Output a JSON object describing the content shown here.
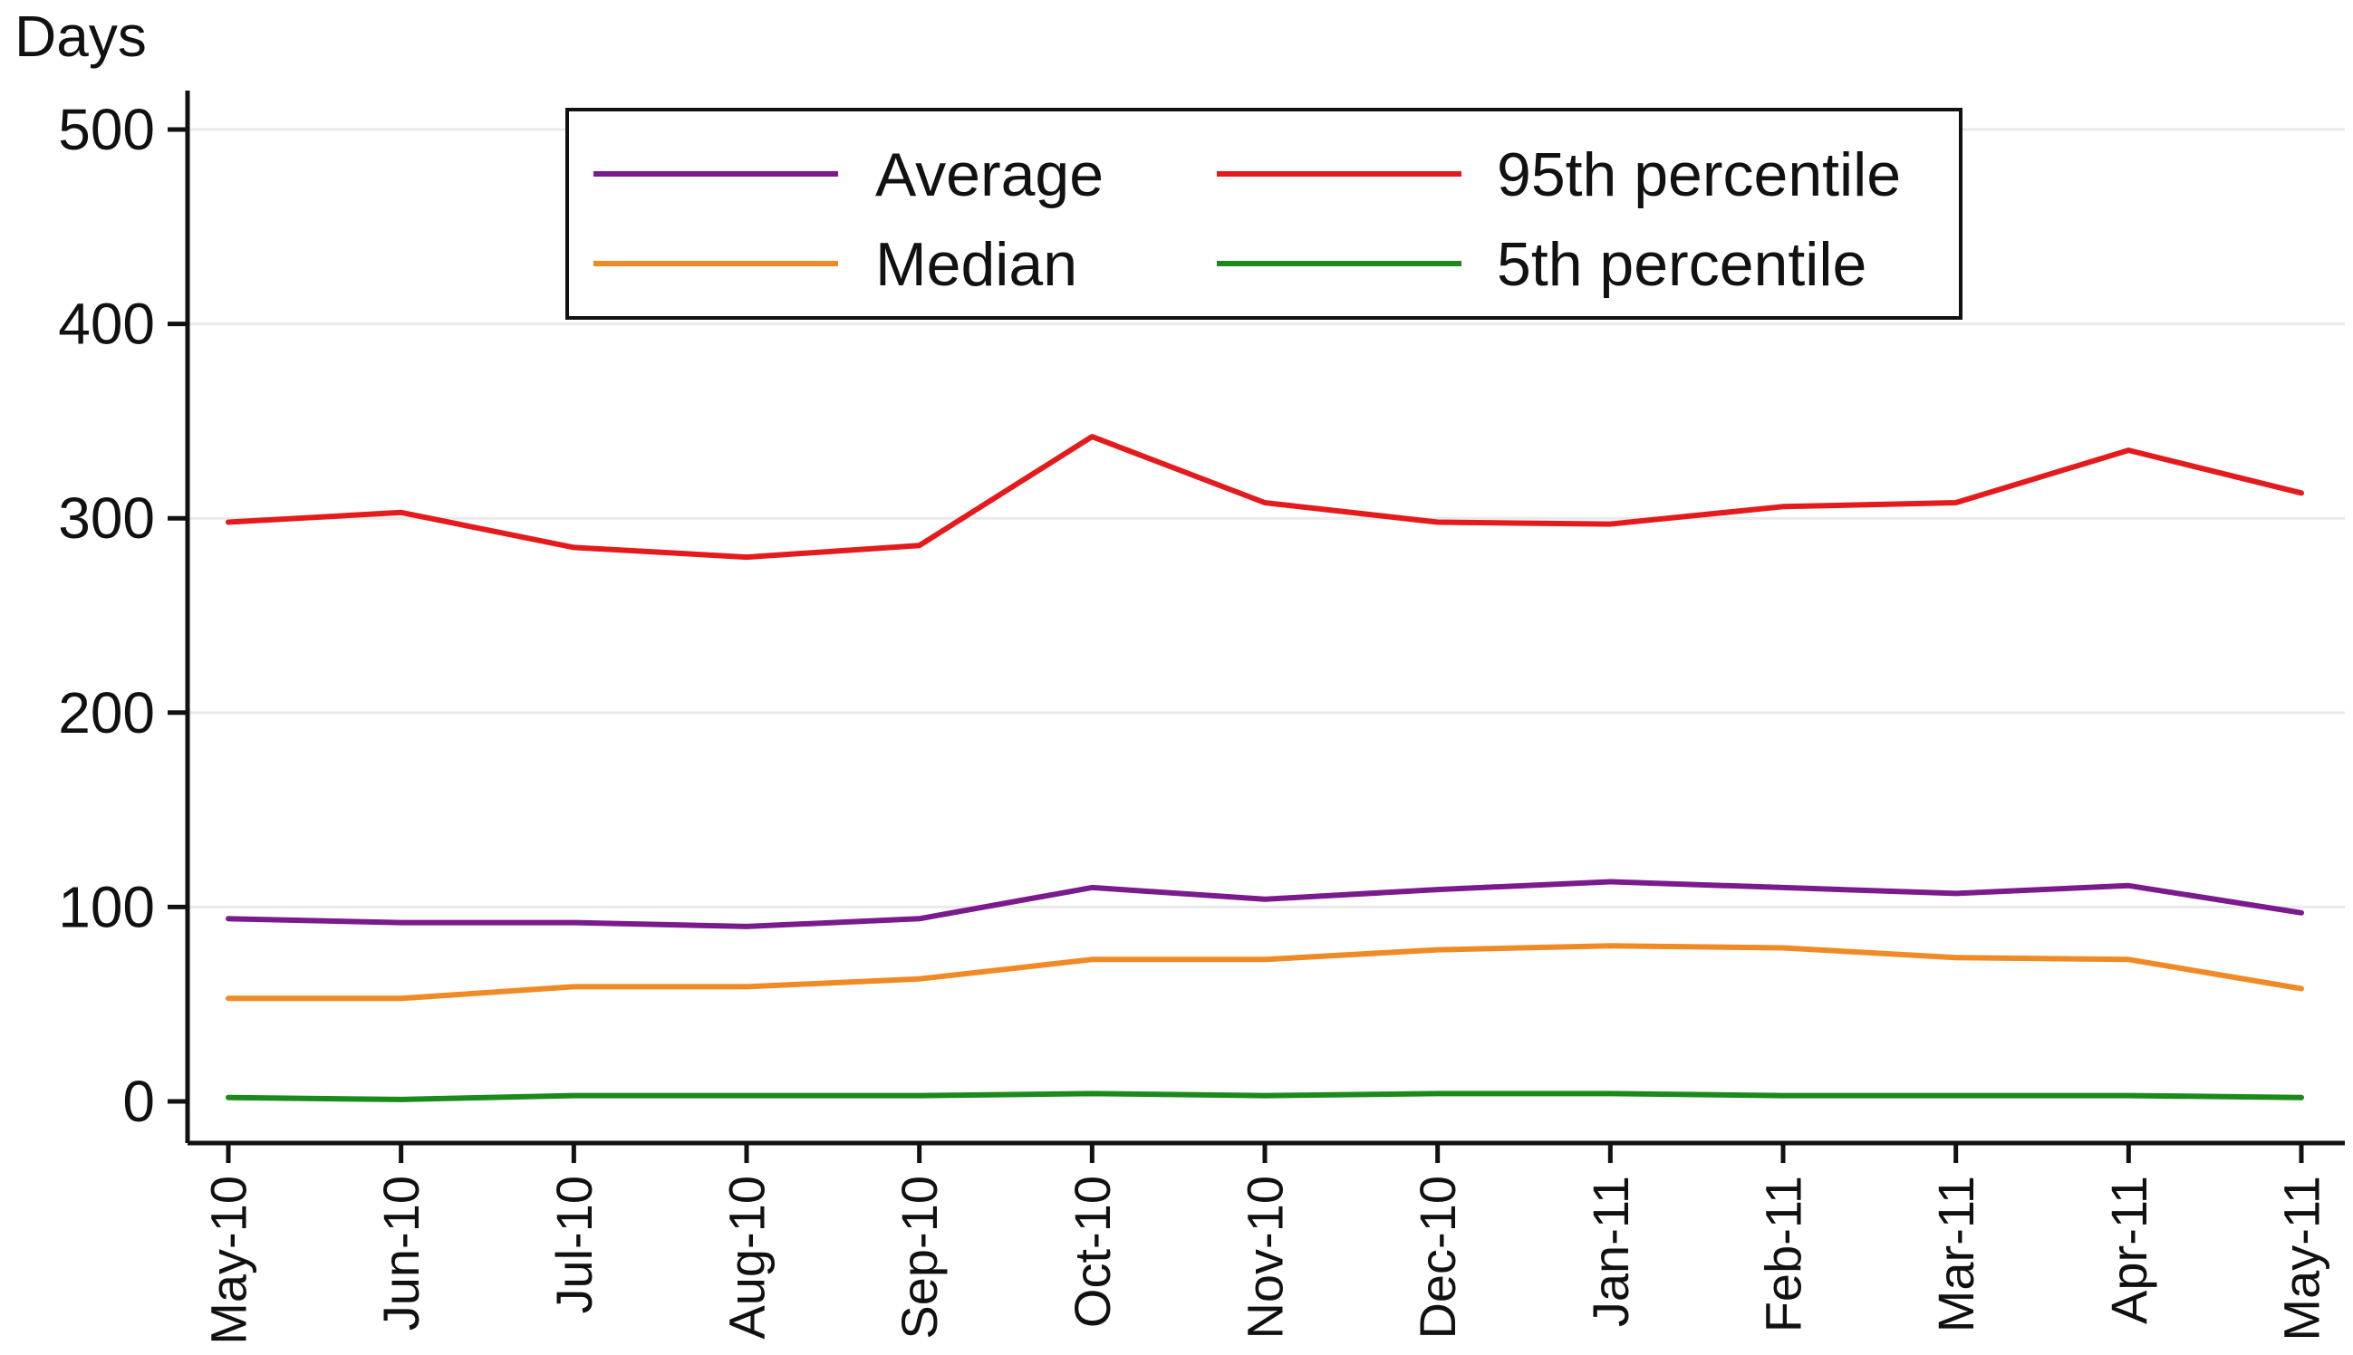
{
  "chart_data": {
    "type": "line",
    "ylabel": "Days",
    "xlabel": "",
    "title": "",
    "ylim": [
      -20,
      520
    ],
    "yticks": [
      0,
      100,
      200,
      300,
      400,
      500
    ],
    "grid": true,
    "legend_position": "top-center",
    "categories": [
      "May-10",
      "Jun-10",
      "Jul-10",
      "Aug-10",
      "Sep-10",
      "Oct-10",
      "Nov-10",
      "Dec-10",
      "Jan-11",
      "Feb-11",
      "Mar-11",
      "Apr-11",
      "May-11"
    ],
    "series": [
      {
        "name": "Average",
        "color": "#7a1a8c",
        "values": [
          94,
          92,
          92,
          90,
          94,
          110,
          104,
          109,
          113,
          110,
          107,
          111,
          97
        ]
      },
      {
        "name": "Median",
        "color": "#f08a24",
        "values": [
          53,
          53,
          59,
          59,
          63,
          73,
          73,
          78,
          80,
          79,
          74,
          73,
          58
        ]
      },
      {
        "name": "95th percentile",
        "color": "#e41a1c",
        "values": [
          298,
          303,
          285,
          280,
          286,
          342,
          308,
          298,
          297,
          306,
          308,
          335,
          313
        ]
      },
      {
        "name": "5th percentile",
        "color": "#1a8a1a",
        "values": [
          2,
          1,
          3,
          3,
          3,
          4,
          3,
          4,
          4,
          3,
          3,
          3,
          2
        ]
      }
    ],
    "legend": {
      "rows": [
        [
          "Average",
          "95th percentile"
        ],
        [
          "Median",
          "5th percentile"
        ]
      ]
    }
  }
}
